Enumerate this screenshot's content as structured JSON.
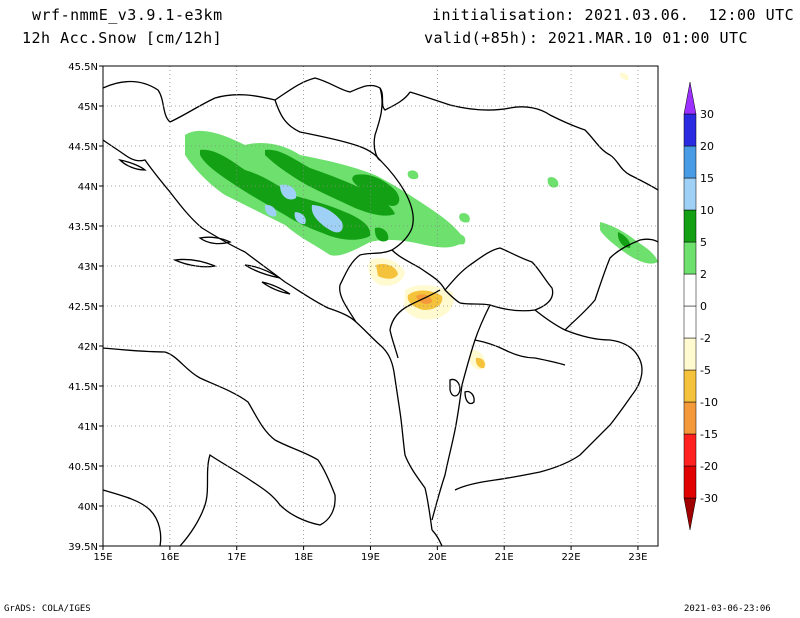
{
  "header": {
    "model": "wrf-nmmE_v3.9.1-e3km",
    "field": "12h Acc.Snow [cm/12h]",
    "initialisation": "initialisation: 2021.03.06.  12:00 UTC",
    "valid": "valid(+85h): 2021.MAR.10 01:00 UTC"
  },
  "footer": {
    "credit": "GrADS: COLA/IGES",
    "timestamp": "2021-03-06-23:06"
  },
  "map": {
    "lon_range": [
      15,
      23.3
    ],
    "lat_range": [
      39.5,
      45.5
    ],
    "lon_ticks": [
      {
        "v": 15,
        "label": "15E"
      },
      {
        "v": 16,
        "label": "16E"
      },
      {
        "v": 17,
        "label": "17E"
      },
      {
        "v": 18,
        "label": "18E"
      },
      {
        "v": 19,
        "label": "19E"
      },
      {
        "v": 20,
        "label": "20E"
      },
      {
        "v": 21,
        "label": "21E"
      },
      {
        "v": 22,
        "label": "22E"
      },
      {
        "v": 23,
        "label": "23E"
      }
    ],
    "lat_ticks": [
      {
        "v": 39.5,
        "label": "39.5N"
      },
      {
        "v": 40,
        "label": "40N"
      },
      {
        "v": 40.5,
        "label": "40.5N"
      },
      {
        "v": 41,
        "label": "41N"
      },
      {
        "v": 41.5,
        "label": "41.5N"
      },
      {
        "v": 42,
        "label": "42N"
      },
      {
        "v": 42.5,
        "label": "42.5N"
      },
      {
        "v": 43,
        "label": "43N"
      },
      {
        "v": 43.5,
        "label": "43.5N"
      },
      {
        "v": 44,
        "label": "44N"
      },
      {
        "v": 44.5,
        "label": "44.5N"
      },
      {
        "v": 45,
        "label": "45N"
      },
      {
        "v": 45.5,
        "label": "45.5N"
      }
    ],
    "grid": true,
    "grid_style": "dotted"
  },
  "colorbar": {
    "colors": [
      "#a00000",
      "#e00000",
      "#ff2020",
      "#f59a3a",
      "#f5c23c",
      "#fffad0",
      "#ffffff",
      "#ffffff",
      "#6de06d",
      "#14a014",
      "#9fd0f5",
      "#4a9be6",
      "#2a2ae0",
      "#9b30ff"
    ],
    "labels": [
      {
        "after": 13,
        "label": "30"
      },
      {
        "after": 12,
        "label": "20"
      },
      {
        "after": 11,
        "label": "15"
      },
      {
        "after": 10,
        "label": "10"
      },
      {
        "after": 9,
        "label": "5"
      },
      {
        "after": 8,
        "label": "2"
      },
      {
        "after": 7,
        "label": "0"
      },
      {
        "after": 6,
        "label": "-2"
      },
      {
        "after": 5,
        "label": "-5"
      },
      {
        "after": 4,
        "label": "-10"
      },
      {
        "after": 3,
        "label": "-15"
      },
      {
        "after": 2,
        "label": "-20"
      },
      {
        "after": 1,
        "label": "-30"
      }
    ]
  },
  "colors": {
    "snow_2": "#6de06d",
    "snow_5": "#14a014",
    "snow_10": "#9fd0f5",
    "snow_15": "#4a9be6",
    "melt_2": "#fffad0",
    "melt_5": "#f5c23c",
    "melt_10": "#f59a3a",
    "coast": "#000000"
  }
}
